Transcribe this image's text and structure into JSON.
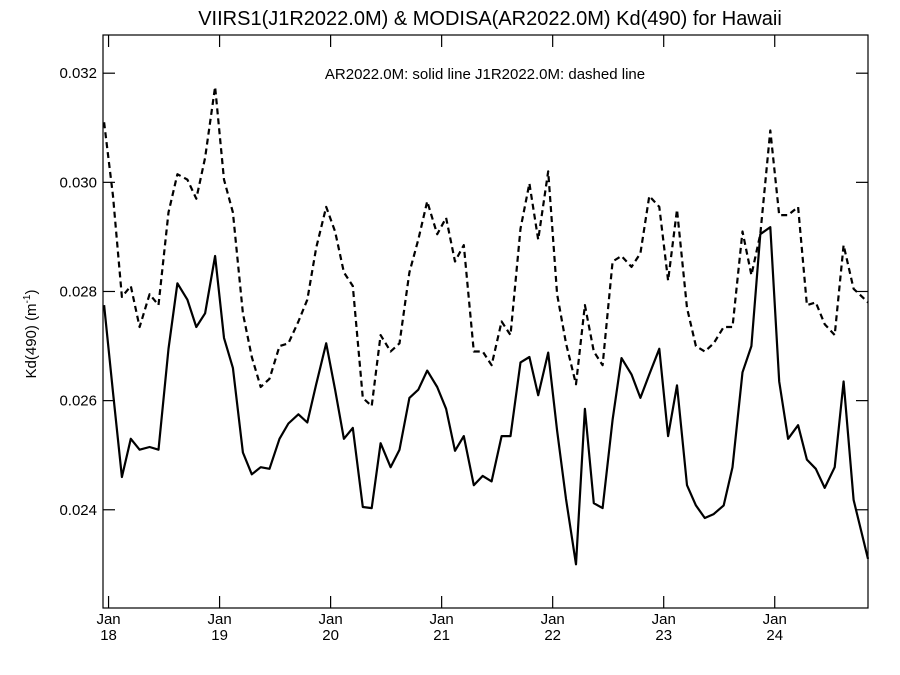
{
  "chart_data": {
    "type": "line",
    "title": "VIIRS1(J1R2022.0M) & MODISA(AR2022.0M)  Kd(490) for Hawaii",
    "annotation": "AR2022.0M: solid line   J1R2022.0M: dashed line",
    "ylabel_main": "Kd(490) (m",
    "ylabel_sup": "-1",
    "ylabel_close": ")",
    "x_unit": "year",
    "xlim": [
      2017.95,
      2024.84
    ],
    "ylim": [
      0.0222,
      0.0327
    ],
    "yticks": [
      {
        "value": 0.024,
        "label": "0.024"
      },
      {
        "value": 0.026,
        "label": "0.026"
      },
      {
        "value": 0.028,
        "label": "0.028"
      },
      {
        "value": 0.03,
        "label": "0.030"
      },
      {
        "value": 0.032,
        "label": "0.032"
      }
    ],
    "xticks": [
      {
        "value": 2018,
        "month": "Jan",
        "year": "18"
      },
      {
        "value": 2019,
        "month": "Jan",
        "year": "19"
      },
      {
        "value": 2020,
        "month": "Jan",
        "year": "20"
      },
      {
        "value": 2021,
        "month": "Jan",
        "year": "21"
      },
      {
        "value": 2022,
        "month": "Jan",
        "year": "22"
      },
      {
        "value": 2023,
        "month": "Jan",
        "year": "23"
      },
      {
        "value": 2024,
        "month": "Jan",
        "year": "24"
      }
    ],
    "series": [
      {
        "name": "AR2022.0M",
        "style": "solid",
        "color": "#000000",
        "points": [
          [
            2017.96,
            0.02775
          ],
          [
            2018.04,
            0.02615
          ],
          [
            2018.12,
            0.0246
          ],
          [
            2018.2,
            0.0253
          ],
          [
            2018.28,
            0.0251
          ],
          [
            2018.37,
            0.02515
          ],
          [
            2018.45,
            0.0251
          ],
          [
            2018.54,
            0.02695
          ],
          [
            2018.62,
            0.02815
          ],
          [
            2018.71,
            0.02785
          ],
          [
            2018.79,
            0.02735
          ],
          [
            2018.87,
            0.0276
          ],
          [
            2018.96,
            0.02865
          ],
          [
            2019.04,
            0.02715
          ],
          [
            2019.12,
            0.0266
          ],
          [
            2019.21,
            0.02505
          ],
          [
            2019.29,
            0.02465
          ],
          [
            2019.37,
            0.02478
          ],
          [
            2019.45,
            0.02475
          ],
          [
            2019.54,
            0.0253
          ],
          [
            2019.62,
            0.02558
          ],
          [
            2019.71,
            0.02575
          ],
          [
            2019.79,
            0.0256
          ],
          [
            2019.87,
            0.0263
          ],
          [
            2019.96,
            0.02705
          ],
          [
            2020.04,
            0.0262
          ],
          [
            2020.12,
            0.0253
          ],
          [
            2020.2,
            0.0255
          ],
          [
            2020.29,
            0.02405
          ],
          [
            2020.37,
            0.02403
          ],
          [
            2020.45,
            0.02522
          ],
          [
            2020.54,
            0.02478
          ],
          [
            2020.62,
            0.0251
          ],
          [
            2020.71,
            0.02605
          ],
          [
            2020.79,
            0.0262
          ],
          [
            2020.87,
            0.02655
          ],
          [
            2020.96,
            0.02625
          ],
          [
            2021.04,
            0.02585
          ],
          [
            2021.12,
            0.02508
          ],
          [
            2021.2,
            0.02535
          ],
          [
            2021.29,
            0.02445
          ],
          [
            2021.37,
            0.02462
          ],
          [
            2021.45,
            0.02452
          ],
          [
            2021.54,
            0.02535
          ],
          [
            2021.62,
            0.02535
          ],
          [
            2021.71,
            0.0267
          ],
          [
            2021.79,
            0.0268
          ],
          [
            2021.87,
            0.0261
          ],
          [
            2021.96,
            0.02688
          ],
          [
            2022.04,
            0.02545
          ],
          [
            2022.12,
            0.0242
          ],
          [
            2022.21,
            0.023
          ],
          [
            2022.29,
            0.02585
          ],
          [
            2022.37,
            0.02412
          ],
          [
            2022.45,
            0.02403
          ],
          [
            2022.54,
            0.02565
          ],
          [
            2022.62,
            0.02678
          ],
          [
            2022.71,
            0.02648
          ],
          [
            2022.79,
            0.02605
          ],
          [
            2022.87,
            0.02648
          ],
          [
            2022.96,
            0.02695
          ],
          [
            2023.04,
            0.02535
          ],
          [
            2023.12,
            0.02628
          ],
          [
            2023.21,
            0.02445
          ],
          [
            2023.29,
            0.02408
          ],
          [
            2023.37,
            0.02385
          ],
          [
            2023.45,
            0.02392
          ],
          [
            2023.54,
            0.02408
          ],
          [
            2023.62,
            0.02478
          ],
          [
            2023.71,
            0.02652
          ],
          [
            2023.79,
            0.027
          ],
          [
            2023.87,
            0.02905
          ],
          [
            2023.96,
            0.02918
          ],
          [
            2024.04,
            0.02635
          ],
          [
            2024.12,
            0.0253
          ],
          [
            2024.21,
            0.02555
          ],
          [
            2024.29,
            0.02492
          ],
          [
            2024.37,
            0.02475
          ],
          [
            2024.45,
            0.0244
          ],
          [
            2024.54,
            0.02478
          ],
          [
            2024.62,
            0.02635
          ],
          [
            2024.71,
            0.02418
          ],
          [
            2024.84,
            0.0231
          ]
        ]
      },
      {
        "name": "J1R2022.0M",
        "style": "dashed",
        "color": "#000000",
        "points": [
          [
            2017.96,
            0.0311
          ],
          [
            2018.04,
            0.02975
          ],
          [
            2018.12,
            0.0279
          ],
          [
            2018.2,
            0.0281
          ],
          [
            2018.28,
            0.02735
          ],
          [
            2018.37,
            0.02795
          ],
          [
            2018.45,
            0.02775
          ],
          [
            2018.54,
            0.02945
          ],
          [
            2018.62,
            0.03015
          ],
          [
            2018.71,
            0.03005
          ],
          [
            2018.79,
            0.0297
          ],
          [
            2018.87,
            0.03045
          ],
          [
            2018.96,
            0.03175
          ],
          [
            2019.04,
            0.03005
          ],
          [
            2019.12,
            0.02945
          ],
          [
            2019.21,
            0.0276
          ],
          [
            2019.29,
            0.0268
          ],
          [
            2019.37,
            0.02625
          ],
          [
            2019.45,
            0.0264
          ],
          [
            2019.54,
            0.027
          ],
          [
            2019.62,
            0.02705
          ],
          [
            2019.71,
            0.02745
          ],
          [
            2019.79,
            0.02785
          ],
          [
            2019.87,
            0.0288
          ],
          [
            2019.96,
            0.02955
          ],
          [
            2020.04,
            0.0291
          ],
          [
            2020.12,
            0.02835
          ],
          [
            2020.2,
            0.0281
          ],
          [
            2020.29,
            0.02605
          ],
          [
            2020.37,
            0.0259
          ],
          [
            2020.45,
            0.0272
          ],
          [
            2020.54,
            0.0269
          ],
          [
            2020.62,
            0.02705
          ],
          [
            2020.71,
            0.02835
          ],
          [
            2020.79,
            0.02895
          ],
          [
            2020.87,
            0.02965
          ],
          [
            2020.96,
            0.02905
          ],
          [
            2021.04,
            0.02935
          ],
          [
            2021.12,
            0.02855
          ],
          [
            2021.2,
            0.02885
          ],
          [
            2021.29,
            0.0269
          ],
          [
            2021.37,
            0.0269
          ],
          [
            2021.45,
            0.02665
          ],
          [
            2021.54,
            0.02745
          ],
          [
            2021.62,
            0.0272
          ],
          [
            2021.71,
            0.02915
          ],
          [
            2021.79,
            0.02998
          ],
          [
            2021.87,
            0.02895
          ],
          [
            2021.96,
            0.0302
          ],
          [
            2022.04,
            0.02795
          ],
          [
            2022.12,
            0.02705
          ],
          [
            2022.21,
            0.0263
          ],
          [
            2022.29,
            0.02775
          ],
          [
            2022.37,
            0.0269
          ],
          [
            2022.45,
            0.02665
          ],
          [
            2022.54,
            0.02855
          ],
          [
            2022.62,
            0.02865
          ],
          [
            2022.71,
            0.02845
          ],
          [
            2022.79,
            0.0287
          ],
          [
            2022.87,
            0.02975
          ],
          [
            2022.96,
            0.02955
          ],
          [
            2023.04,
            0.0282
          ],
          [
            2023.12,
            0.0295
          ],
          [
            2023.21,
            0.0277
          ],
          [
            2023.29,
            0.027
          ],
          [
            2023.37,
            0.0269
          ],
          [
            2023.45,
            0.02705
          ],
          [
            2023.54,
            0.02735
          ],
          [
            2023.62,
            0.02735
          ],
          [
            2023.71,
            0.0291
          ],
          [
            2023.79,
            0.0283
          ],
          [
            2023.87,
            0.02905
          ],
          [
            2023.96,
            0.03095
          ],
          [
            2024.04,
            0.0294
          ],
          [
            2024.12,
            0.0294
          ],
          [
            2024.21,
            0.02955
          ],
          [
            2024.29,
            0.02775
          ],
          [
            2024.37,
            0.0278
          ],
          [
            2024.45,
            0.0274
          ],
          [
            2024.54,
            0.0272
          ],
          [
            2024.62,
            0.02885
          ],
          [
            2024.71,
            0.02805
          ],
          [
            2024.84,
            0.0278
          ]
        ]
      }
    ]
  }
}
